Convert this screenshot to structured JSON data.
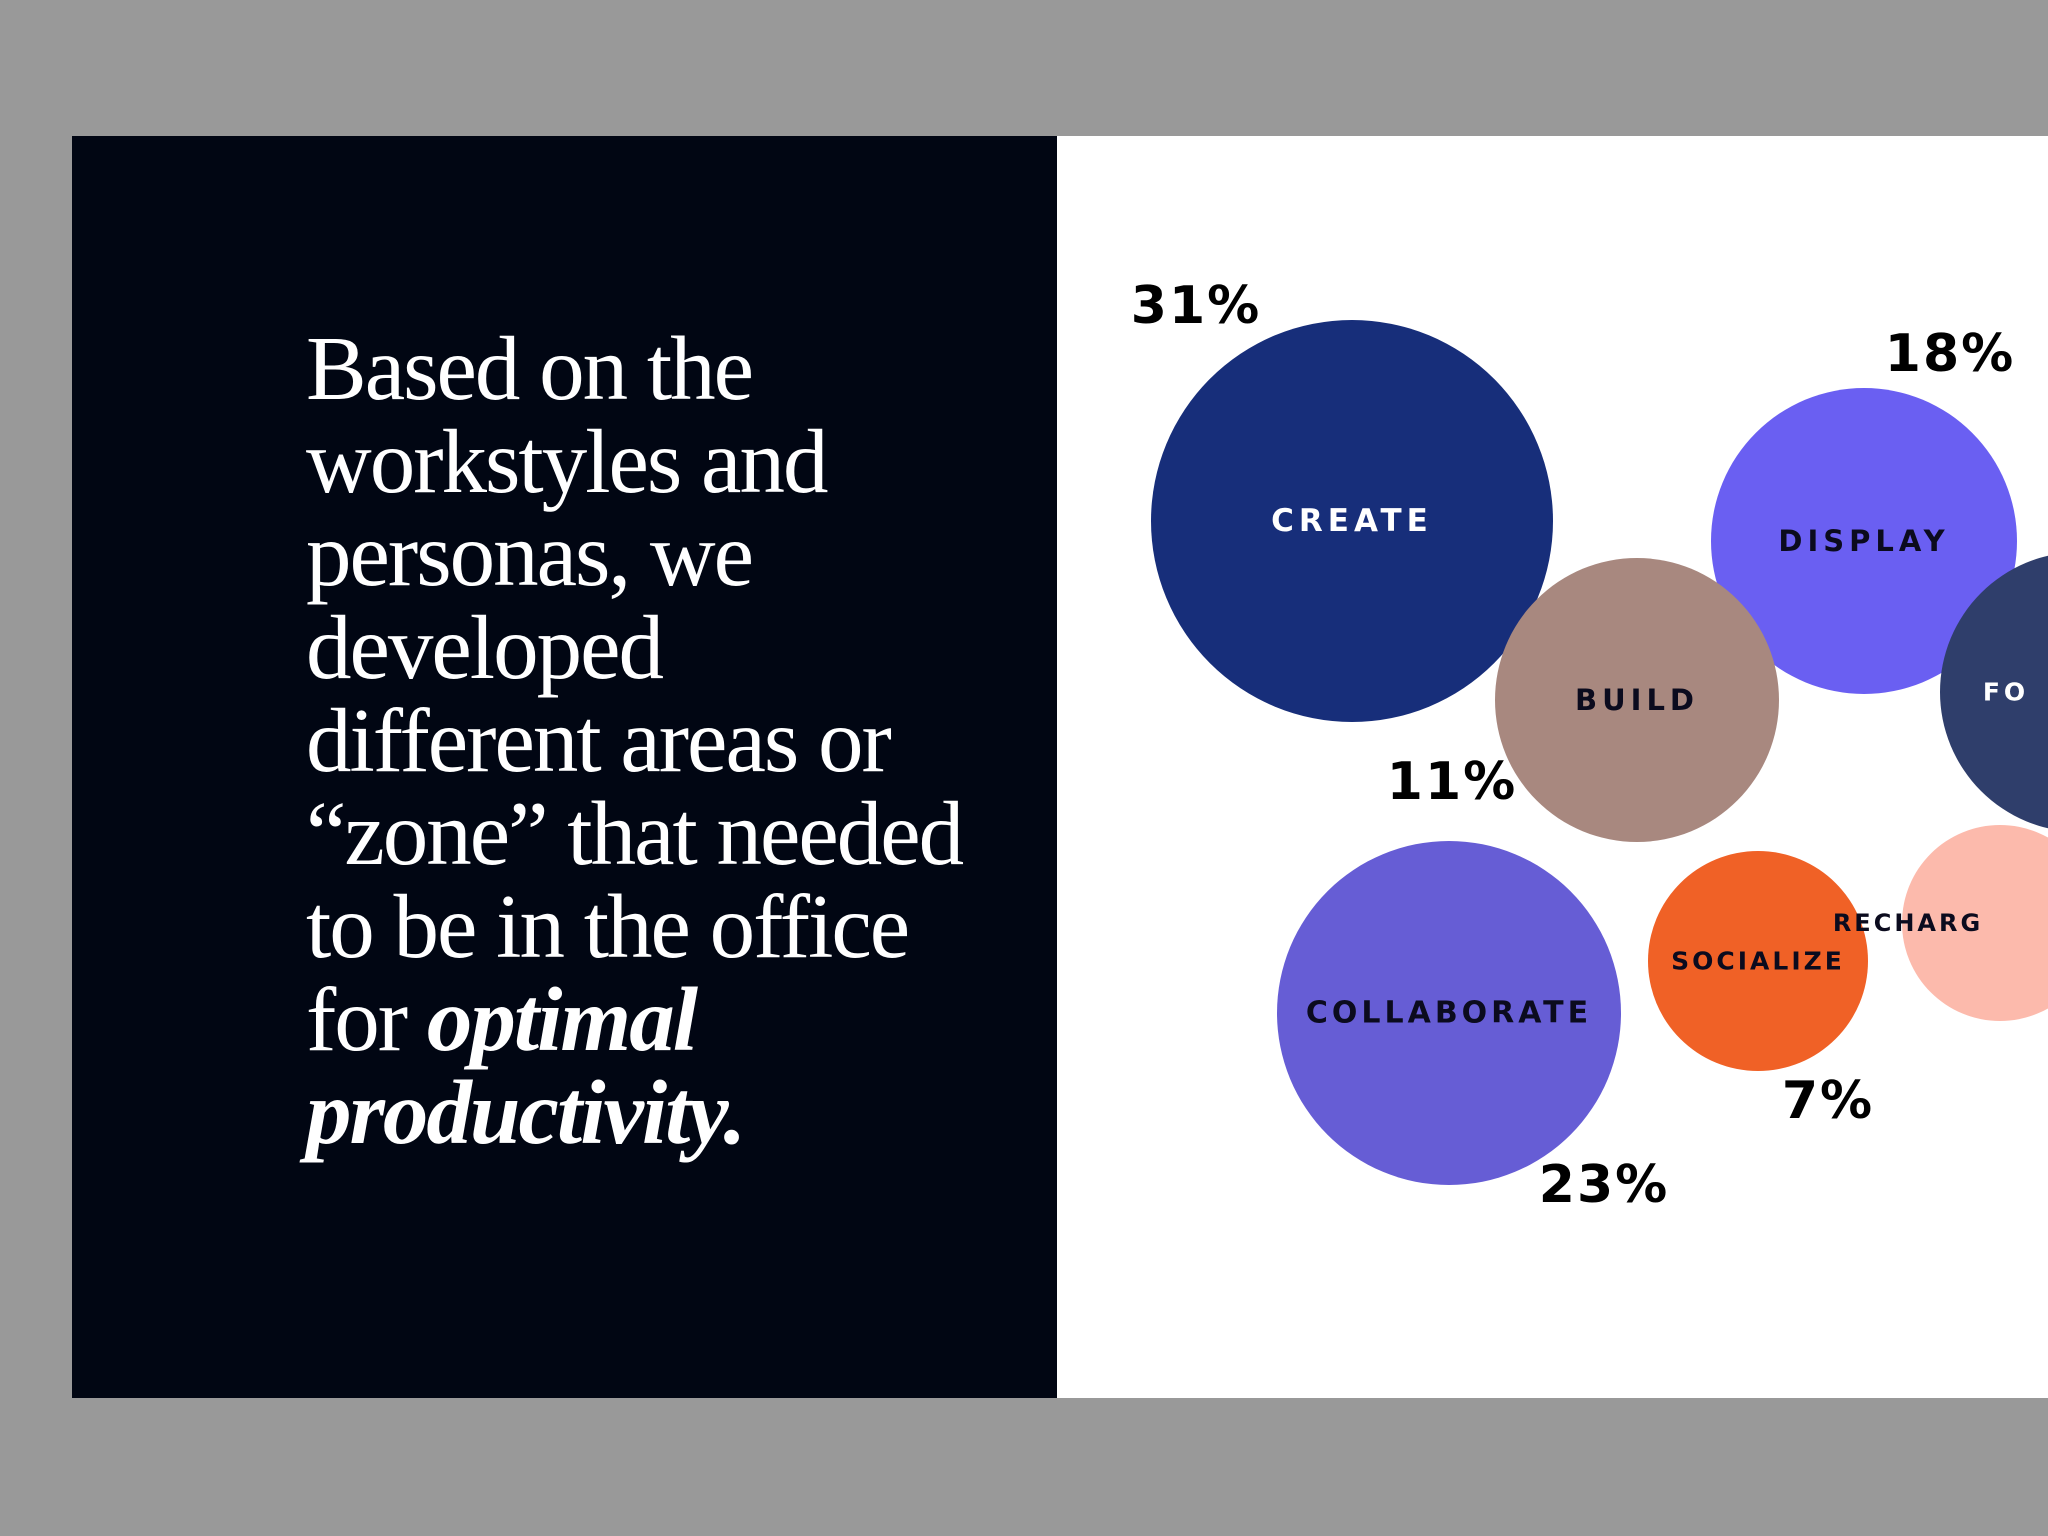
{
  "headline": {
    "lines": [
      "Based on the",
      "workstyles and",
      "personas, we",
      "developed",
      "different areas or",
      "“zone” that needed",
      "to be in the office"
    ],
    "last_prefix": "for ",
    "emphasis_1": "optimal",
    "emphasis_2": "productivity."
  },
  "chart_data": {
    "type": "bubble",
    "series": [
      {
        "label": "CREATE",
        "value": 31,
        "value_label": "31%",
        "color": "#172e7a",
        "text_color": "#ffffff"
      },
      {
        "label": "COLLABORATE",
        "value": 23,
        "value_label": "23%",
        "color": "#665dd5",
        "text_color": "#0b0b1e"
      },
      {
        "label": "DISPLAY",
        "value": 18,
        "value_label": "18%",
        "color": "#6a5ff2",
        "text_color": "#0b0b1e"
      },
      {
        "label": "BUILD",
        "value": 11,
        "value_label": "11%",
        "color": "#a8887f",
        "text_color": "#0b0b1e"
      },
      {
        "label": "SOCIALIZE",
        "value": 7,
        "value_label": "7%",
        "color": "#f06126",
        "text_color": "#0b0b1e"
      },
      {
        "label": "FO",
        "value": null,
        "value_label": "",
        "color": "#2f3e6b",
        "text_color": "#ffffff"
      },
      {
        "label": "RECHARG",
        "value": null,
        "value_label": "",
        "color": "#fcbaac",
        "text_color": "#0b0b1e"
      }
    ]
  }
}
